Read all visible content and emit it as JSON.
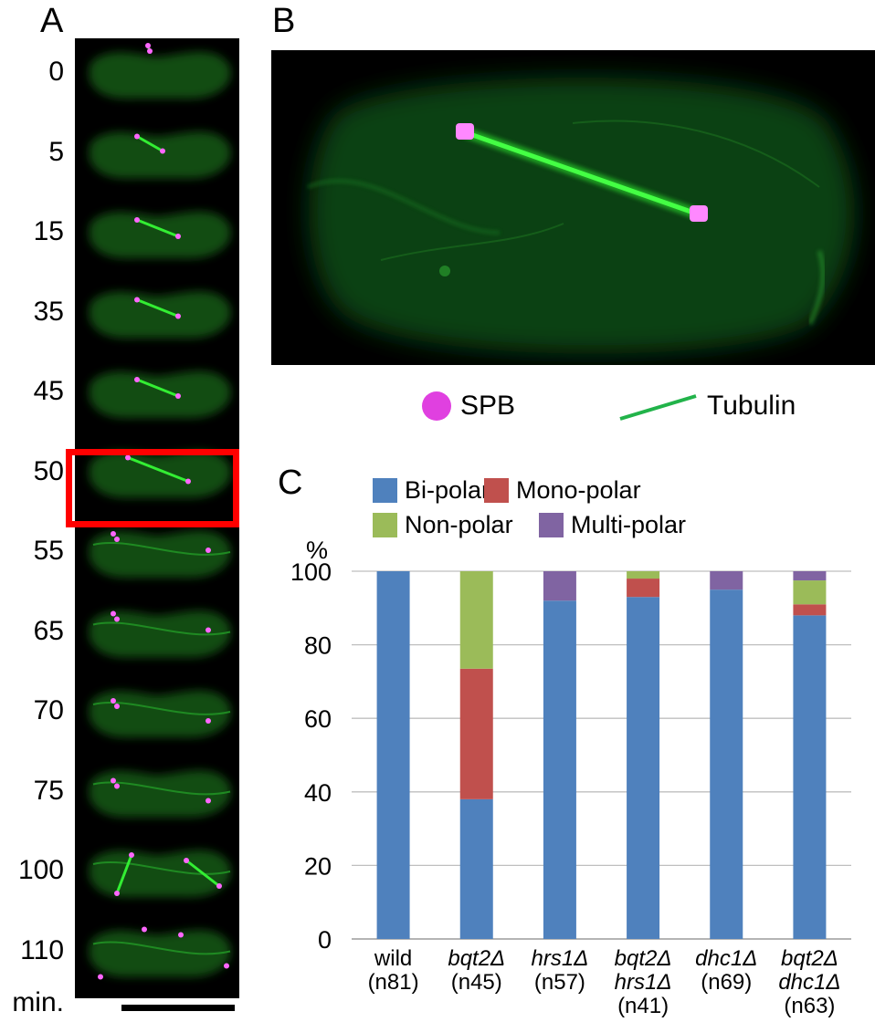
{
  "panels": {
    "a_letter": "A",
    "b_letter": "B",
    "c_letter": "C"
  },
  "timelapse": {
    "times": [
      "0",
      "5",
      "15",
      "35",
      "45",
      "50",
      "55",
      "65",
      "70",
      "75",
      "100",
      "110"
    ],
    "unit": "min.",
    "highlighted_time": "50",
    "colors": {
      "tubulin": "#22cc22",
      "spb": "#ff66ff",
      "highlight": "#ff0000"
    }
  },
  "panel_b_legend": {
    "spb_label": "SPB",
    "tubulin_label": "Tubulin"
  },
  "chart_data": {
    "type": "bar",
    "stacked": true,
    "ylabel": "%",
    "ylim": [
      0,
      100
    ],
    "yticks": [
      0,
      20,
      40,
      60,
      80,
      100
    ],
    "grid": true,
    "legend_position": "top",
    "categories": [
      {
        "lines": [
          "wild",
          "(n81)"
        ],
        "italic": [
          false,
          false
        ]
      },
      {
        "lines": [
          "bqt2Δ",
          "(n45)"
        ],
        "italic": [
          true,
          false
        ]
      },
      {
        "lines": [
          "hrs1Δ",
          "(n57)"
        ],
        "italic": [
          true,
          false
        ]
      },
      {
        "lines": [
          "bqt2Δ",
          "hrs1Δ",
          "(n41)"
        ],
        "italic": [
          true,
          true,
          false
        ]
      },
      {
        "lines": [
          "dhc1Δ",
          "(n69)"
        ],
        "italic": [
          true,
          false
        ]
      },
      {
        "lines": [
          "bqt2Δ",
          "dhc1Δ",
          "(n63)"
        ],
        "italic": [
          true,
          true,
          false
        ]
      }
    ],
    "series": [
      {
        "name": "Bi-polar",
        "color": "#4f81bd",
        "values": [
          100,
          38,
          92,
          93,
          95,
          88
        ]
      },
      {
        "name": "Mono-polar",
        "color": "#c0504d",
        "values": [
          0,
          35.5,
          0,
          5,
          0,
          3
        ]
      },
      {
        "name": "Non-polar",
        "color": "#9bbb59",
        "values": [
          0,
          26.5,
          0,
          2,
          0,
          6.5
        ]
      },
      {
        "name": "Multi-polar",
        "color": "#8064a2",
        "values": [
          0,
          0,
          8,
          0,
          5,
          2.5
        ]
      }
    ]
  }
}
